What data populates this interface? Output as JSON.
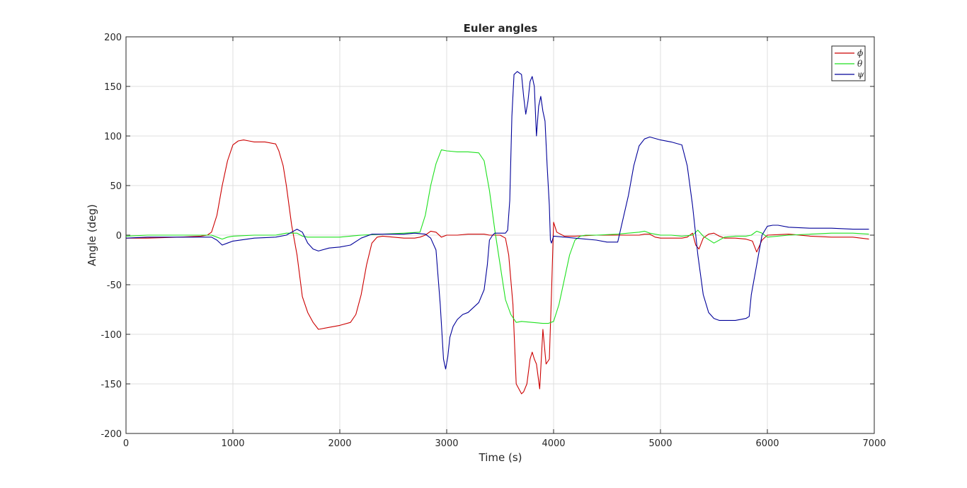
{
  "chart_data": {
    "type": "line",
    "title": "Euler angles",
    "xlabel": "Time (s)",
    "ylabel": "Angle (deg)",
    "xlim": [
      0,
      7000
    ],
    "ylim": [
      -200,
      200
    ],
    "xticks": [
      0,
      1000,
      2000,
      3000,
      4000,
      5000,
      6000,
      7000
    ],
    "xtick_labels": [
      "0",
      "1000",
      "2000",
      "3000",
      "4000",
      "5000",
      "6000",
      "7000"
    ],
    "yticks": [
      -200,
      -150,
      -100,
      -50,
      0,
      50,
      100,
      150,
      200
    ],
    "ytick_labels": [
      "-200",
      "-150",
      "-100",
      "-50",
      "0",
      "50",
      "100",
      "150",
      "200"
    ],
    "grid": true,
    "legend_position": "top-right",
    "series": [
      {
        "name": "ϕ",
        "color": "#cc0000",
        "x": [
          0,
          200,
          500,
          700,
          760,
          800,
          850,
          900,
          950,
          1000,
          1050,
          1100,
          1150,
          1200,
          1300,
          1400,
          1430,
          1470,
          1500,
          1550,
          1600,
          1650,
          1700,
          1750,
          1800,
          1900,
          2000,
          2100,
          2150,
          2200,
          2250,
          2300,
          2350,
          2400,
          2500,
          2600,
          2700,
          2750,
          2800,
          2850,
          2900,
          2950,
          3000,
          3100,
          3200,
          3300,
          3350,
          3400,
          3450,
          3500,
          3550,
          3580,
          3620,
          3650,
          3700,
          3720,
          3750,
          3780,
          3800,
          3820,
          3840,
          3870,
          3900,
          3930,
          3960,
          3980,
          4000,
          4030,
          4100,
          4200,
          4400,
          4600,
          4800,
          4850,
          4900,
          4950,
          5000,
          5100,
          5200,
          5250,
          5300,
          5330,
          5360,
          5400,
          5450,
          5500,
          5550,
          5600,
          5700,
          5800,
          5860,
          5900,
          5950,
          6000,
          6200,
          6400,
          6600,
          6800,
          6950
        ],
        "values": [
          -3,
          -3,
          -2,
          -1,
          0,
          3,
          20,
          50,
          75,
          91,
          95,
          96,
          95,
          94,
          94,
          92,
          85,
          70,
          50,
          10,
          -20,
          -62,
          -78,
          -88,
          -95,
          -93,
          -91,
          -88,
          -80,
          -60,
          -30,
          -8,
          -2,
          -1,
          -2,
          -3,
          -3,
          -2,
          0,
          4,
          3,
          -2,
          0,
          0,
          1,
          1,
          1,
          0,
          0,
          0,
          -3,
          -20,
          -70,
          -150,
          -160,
          -158,
          -150,
          -125,
          -118,
          -125,
          -130,
          -155,
          -95,
          -130,
          -125,
          -60,
          13,
          3,
          -1,
          -1,
          0,
          0,
          0,
          1,
          1,
          -2,
          -3,
          -3,
          -3,
          -2,
          2,
          -10,
          -14,
          -3,
          1,
          2,
          -1,
          -3,
          -3,
          -4,
          -6,
          -17,
          -5,
          0,
          1,
          -1,
          -2,
          -2,
          -4
        ]
      },
      {
        "name": "θ",
        "color": "#1ee11e",
        "x": [
          0,
          200,
          500,
          700,
          800,
          850,
          900,
          950,
          1000,
          1200,
          1400,
          1500,
          1600,
          1650,
          1700,
          1800,
          2000,
          2200,
          2400,
          2600,
          2750,
          2800,
          2850,
          2900,
          2950,
          3000,
          3100,
          3200,
          3300,
          3350,
          3400,
          3450,
          3500,
          3550,
          3600,
          3650,
          3700,
          3800,
          3900,
          3950,
          4000,
          4050,
          4100,
          4150,
          4200,
          4250,
          4300,
          4400,
          4600,
          4800,
          4850,
          4900,
          5000,
          5100,
          5200,
          5300,
          5350,
          5400,
          5500,
          5600,
          5700,
          5800,
          5850,
          5900,
          5950,
          6000,
          6200,
          6400,
          6600,
          6800,
          6950
        ],
        "values": [
          -1,
          0,
          0,
          0,
          0,
          -2,
          -4,
          -2,
          -1,
          0,
          0,
          2,
          2,
          -1,
          -2,
          -2,
          -2,
          0,
          1,
          2,
          3,
          20,
          50,
          72,
          86,
          85,
          84,
          84,
          83,
          75,
          45,
          5,
          -30,
          -65,
          -80,
          -88,
          -87,
          -88,
          -89,
          -89,
          -87,
          -70,
          -45,
          -20,
          -5,
          -1,
          0,
          0,
          1,
          3,
          4,
          2,
          0,
          0,
          -1,
          0,
          5,
          -1,
          -8,
          -2,
          -1,
          -1,
          0,
          4,
          2,
          -2,
          0,
          1,
          2,
          2,
          1
        ]
      },
      {
        "name": "ψ",
        "color": "#000099",
        "x": [
          0,
          200,
          400,
          600,
          800,
          850,
          900,
          950,
          1000,
          1200,
          1400,
          1500,
          1550,
          1600,
          1650,
          1700,
          1750,
          1800,
          1900,
          2000,
          2100,
          2200,
          2300,
          2400,
          2500,
          2600,
          2700,
          2800,
          2850,
          2900,
          2940,
          2970,
          2990,
          3010,
          3030,
          3060,
          3100,
          3150,
          3200,
          3300,
          3350,
          3380,
          3400,
          3430,
          3450,
          3500,
          3550,
          3570,
          3590,
          3610,
          3630,
          3660,
          3700,
          3720,
          3740,
          3760,
          3780,
          3800,
          3820,
          3840,
          3860,
          3880,
          3900,
          3920,
          3940,
          3960,
          3970,
          3980,
          4000,
          4100,
          4200,
          4400,
          4500,
          4600,
          4700,
          4750,
          4800,
          4850,
          4900,
          5000,
          5100,
          5200,
          5250,
          5300,
          5350,
          5400,
          5450,
          5500,
          5550,
          5600,
          5700,
          5800,
          5830,
          5850,
          5900,
          5950,
          6000,
          6050,
          6100,
          6200,
          6400,
          6600,
          6800,
          6950
        ],
        "values": [
          -3,
          -2,
          -2,
          -2,
          -2,
          -5,
          -10,
          -8,
          -6,
          -3,
          -2,
          0,
          3,
          6,
          3,
          -8,
          -14,
          -16,
          -13,
          -12,
          -10,
          -3,
          1,
          1,
          1,
          1,
          2,
          1,
          -3,
          -15,
          -70,
          -125,
          -135,
          -123,
          -103,
          -92,
          -85,
          -80,
          -78,
          -68,
          -55,
          -30,
          -5,
          0,
          2,
          2,
          2,
          5,
          35,
          120,
          162,
          165,
          162,
          140,
          122,
          135,
          155,
          160,
          150,
          100,
          130,
          140,
          125,
          115,
          70,
          30,
          -5,
          -8,
          -1,
          -2,
          -3,
          -5,
          -7,
          -7,
          40,
          70,
          90,
          97,
          99,
          96,
          94,
          91,
          70,
          30,
          -20,
          -60,
          -78,
          -84,
          -86,
          -86,
          -86,
          -84,
          -82,
          -60,
          -30,
          0,
          9,
          10,
          10,
          8,
          7,
          7,
          6,
          6
        ]
      }
    ]
  }
}
